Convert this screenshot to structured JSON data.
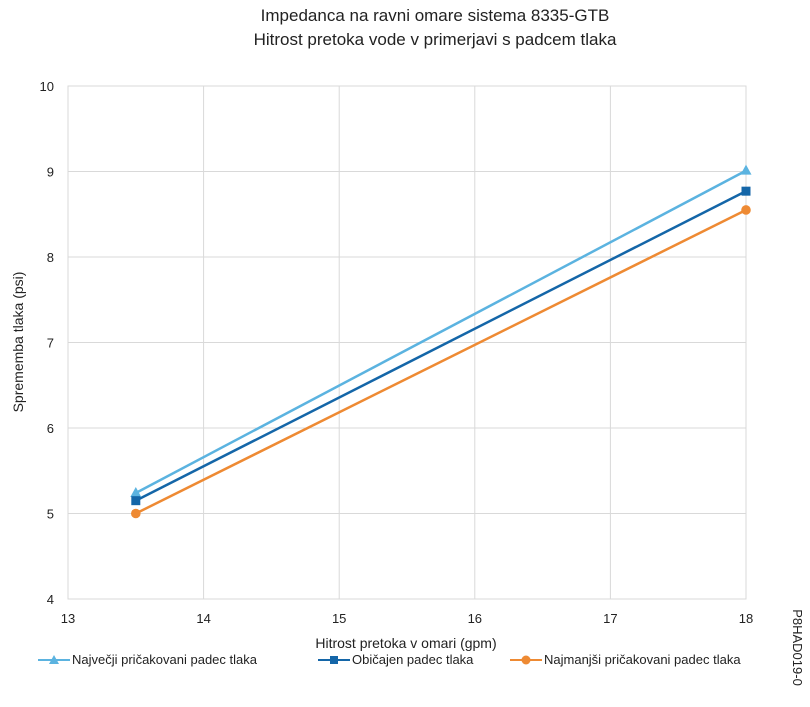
{
  "chart_data": {
    "type": "line",
    "title": "Impedanca na ravni omare sistema 8335-GTB",
    "subtitle": "Hitrost pretoka vode v primerjavi s padcem tlaka",
    "xlabel": "Hitrost pretoka v omari (gpm)",
    "ylabel": "Sprememba tlaka (psi)",
    "xlim": [
      13,
      18
    ],
    "ylim": [
      4,
      10
    ],
    "xticks": [
      "13",
      "14",
      "15",
      "16",
      "17",
      "18"
    ],
    "yticks": [
      "4",
      "5",
      "6",
      "7",
      "8",
      "9",
      "10"
    ],
    "grid": true,
    "legend_position": "bottom",
    "series": [
      {
        "name": "Največji pričakovani padec tlaka",
        "color": "#5BB3E0",
        "marker": "triangle",
        "x": [
          13.5,
          18
        ],
        "y": [
          5.24,
          9.01
        ]
      },
      {
        "name": "Običajen padec tlaka",
        "color": "#1466A8",
        "marker": "square",
        "x": [
          13.5,
          18
        ],
        "y": [
          5.15,
          8.77
        ]
      },
      {
        "name": "Najmanjši pričakovani padec tlaka",
        "color": "#EE8A33",
        "marker": "circle",
        "x": [
          13.5,
          18
        ],
        "y": [
          5.0,
          8.55
        ]
      }
    ]
  },
  "figure_code": "P8HAD019-0"
}
